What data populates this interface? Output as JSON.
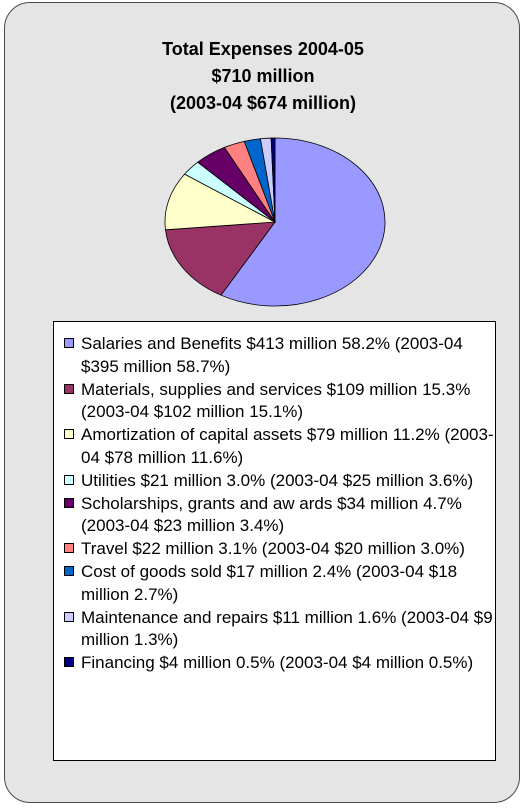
{
  "title": {
    "line1": "Total Expenses 2004-05",
    "line2": "$710 million",
    "line3": "(2003-04 $674 million)"
  },
  "chart_data": {
    "type": "pie",
    "title": "Total Expenses 2004-05 $710 million (2003-04 $674 million)",
    "unit": "million $",
    "slices": [
      {
        "label": "Salaries and Benefits $413 million 58.2% (2003-04 $395 million 58.7%)",
        "value": 413,
        "percent": 58.2,
        "prior_value": 395,
        "prior_percent": 58.7,
        "color": "#9999ff"
      },
      {
        "label": "Materials, supplies and services $109 million 15.3% (2003-04 $102 million 15.1%)",
        "value": 109,
        "percent": 15.3,
        "prior_value": 102,
        "prior_percent": 15.1,
        "color": "#993366"
      },
      {
        "label": "Amortization of capital assets $79 million 11.2% (2003-04 $78 million 11.6%)",
        "value": 79,
        "percent": 11.2,
        "prior_value": 78,
        "prior_percent": 11.6,
        "color": "#ffffcc"
      },
      {
        "label": "Utilities $21 million 3.0% (2003-04 $25 million 3.6%)",
        "value": 21,
        "percent": 3.0,
        "prior_value": 25,
        "prior_percent": 3.6,
        "color": "#ccffff"
      },
      {
        "label": "Scholarships, grants and aw ards $34 million 4.7% (2003-04 $23 million 3.4%)",
        "value": 34,
        "percent": 4.7,
        "prior_value": 23,
        "prior_percent": 3.4,
        "color": "#660066"
      },
      {
        "label": "Travel $22 million 3.1% (2003-04 $20 million 3.0%)",
        "value": 22,
        "percent": 3.1,
        "prior_value": 20,
        "prior_percent": 3.0,
        "color": "#ff8080"
      },
      {
        "label": "Cost of goods sold $17 million 2.4% (2003-04 $18 million 2.7%)",
        "value": 17,
        "percent": 2.4,
        "prior_value": 18,
        "prior_percent": 2.7,
        "color": "#0066cc"
      },
      {
        "label": "Maintenance and repairs $11 million 1.6% (2003-04 $9 million 1.3%)",
        "value": 11,
        "percent": 1.6,
        "prior_value": 9,
        "prior_percent": 1.3,
        "color": "#ccccff"
      },
      {
        "label": "Financing $4 million 0.5% (2003-04 $4 million 0.5%)",
        "value": 4,
        "percent": 0.5,
        "prior_value": 4,
        "prior_percent": 0.5,
        "color": "#000080"
      }
    ],
    "legend_placement": "bottom"
  }
}
